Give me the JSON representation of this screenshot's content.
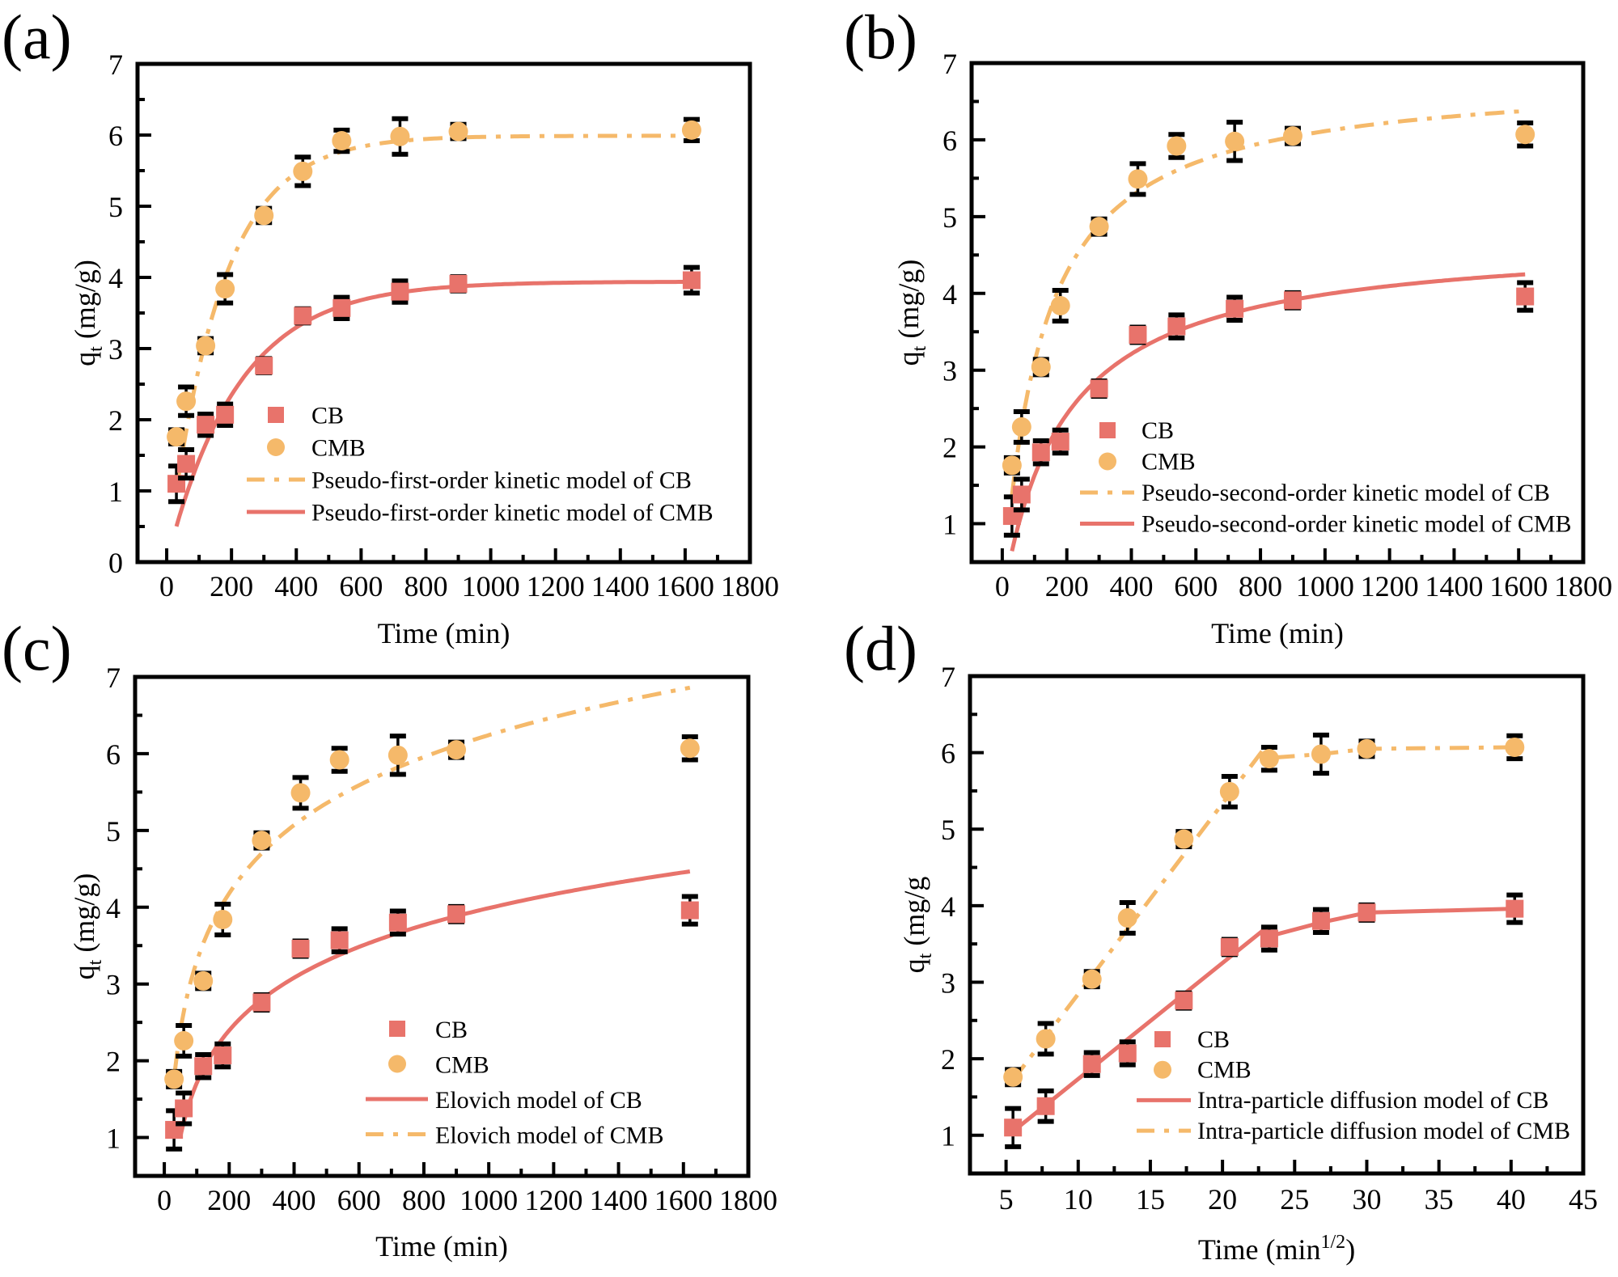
{
  "figure": {
    "colors": {
      "cb": "#E8736B",
      "cmb": "#F5B96A",
      "axis": "#000000"
    }
  },
  "chart_data": [
    {
      "id": "a",
      "type": "scatter",
      "panel_label": "(a)",
      "title": "",
      "xlabel": "Time (min)",
      "ylabel_main": "q",
      "ylabel_sub": "t",
      "ylabel_rest": " (mg/g)",
      "xlim": [
        -90,
        1800
      ],
      "ylim": [
        0,
        7
      ],
      "xticks": [
        0,
        200,
        400,
        600,
        800,
        1000,
        1200,
        1400,
        1600,
        1800
      ],
      "xtick_labels": [
        "0",
        "200",
        "400",
        "600",
        "800",
        "1000",
        "1200",
        "1400",
        "1600",
        "1800"
      ],
      "yticks": [
        0,
        1,
        2,
        3,
        4,
        5,
        6,
        7
      ],
      "ytick_labels": [
        "0",
        "1",
        "2",
        "3",
        "4",
        "5",
        "6",
        "7"
      ],
      "grid": false,
      "legend_position": "lower-center",
      "legend": [
        {
          "label": "CB",
          "kind": "square",
          "color_key": "cb"
        },
        {
          "label": "CMB",
          "kind": "circle",
          "color_key": "cmb"
        },
        {
          "label": "Pseudo-first-order kinetic model of CB",
          "kind": "dashdot",
          "color_key": "cmb"
        },
        {
          "label": "Pseudo-first-order kinetic model of CMB",
          "kind": "solid",
          "color_key": "cb"
        }
      ],
      "series": [
        {
          "name": "CB",
          "kind": "square",
          "color_key": "cb",
          "x": [
            30,
            60,
            120,
            180,
            300,
            420,
            540,
            720,
            900,
            1620
          ],
          "y": [
            1.1,
            1.38,
            1.93,
            2.07,
            2.76,
            3.46,
            3.57,
            3.8,
            3.91,
            3.96
          ],
          "err": [
            0.25,
            0.2,
            0.15,
            0.15,
            0.1,
            0.1,
            0.15,
            0.15,
            0.1,
            0.18
          ]
        },
        {
          "name": "CMB",
          "kind": "circle",
          "color_key": "cmb",
          "x": [
            30,
            60,
            120,
            180,
            300,
            420,
            540,
            720,
            900,
            1620
          ],
          "y": [
            1.76,
            2.26,
            3.04,
            3.84,
            4.87,
            5.49,
            5.92,
            5.98,
            6.05,
            6.07
          ],
          "err": [
            0.1,
            0.2,
            0.1,
            0.2,
            0.1,
            0.2,
            0.15,
            0.25,
            0.1,
            0.15
          ]
        }
      ],
      "models": [
        {
          "name": "Pseudo-first-order kinetic model of CB",
          "style": "dashdot",
          "color_key": "cmb",
          "form": "pfo",
          "qe": 5.99,
          "k": 0.0061,
          "x_range": [
            30,
            1620
          ]
        },
        {
          "name": "Pseudo-first-order kinetic model of CMB",
          "style": "solid",
          "color_key": "cb",
          "form": "pfo",
          "qe": 3.94,
          "k": 0.00453,
          "x_range": [
            30,
            1620
          ]
        }
      ]
    },
    {
      "id": "b",
      "type": "scatter",
      "panel_label": "(b)",
      "title": "",
      "xlabel": "Time (min)",
      "ylabel_main": "q",
      "ylabel_sub": "t",
      "ylabel_rest": " (mg/g)",
      "xlim": [
        -95,
        1800
      ],
      "ylim": [
        0.5,
        7
      ],
      "xticks": [
        0,
        200,
        400,
        600,
        800,
        1000,
        1200,
        1400,
        1600,
        1800
      ],
      "xtick_labels": [
        "0",
        "200",
        "400",
        "600",
        "800",
        "1000",
        "1200",
        "1400",
        "1600",
        "1800"
      ],
      "yticks": [
        1,
        2,
        3,
        4,
        5,
        6,
        7
      ],
      "ytick_labels": [
        "1",
        "2",
        "3",
        "4",
        "5",
        "6",
        "7"
      ],
      "grid": false,
      "legend_position": "lower-right",
      "legend": [
        {
          "label": "CB",
          "kind": "square",
          "color_key": "cb"
        },
        {
          "label": "CMB",
          "kind": "circle",
          "color_key": "cmb"
        },
        {
          "label": "Pseudo-second-order kinetic model of CB",
          "kind": "dashdot",
          "color_key": "cmb"
        },
        {
          "label": "Pseudo-second-order kinetic model of CMB",
          "kind": "solid",
          "color_key": "cb"
        }
      ],
      "series": [
        {
          "name": "CB",
          "kind": "square",
          "color_key": "cb",
          "x": [
            30,
            60,
            120,
            180,
            300,
            420,
            540,
            720,
            900,
            1620
          ],
          "y": [
            1.1,
            1.38,
            1.93,
            2.07,
            2.76,
            3.46,
            3.57,
            3.8,
            3.91,
            3.96
          ],
          "err": [
            0.25,
            0.2,
            0.15,
            0.15,
            0.1,
            0.1,
            0.15,
            0.15,
            0.1,
            0.18
          ]
        },
        {
          "name": "CMB",
          "kind": "circle",
          "color_key": "cmb",
          "x": [
            30,
            60,
            120,
            180,
            300,
            420,
            540,
            720,
            900,
            1620
          ],
          "y": [
            1.76,
            2.26,
            3.04,
            3.84,
            4.87,
            5.49,
            5.92,
            5.98,
            6.05,
            6.07
          ],
          "err": [
            0.1,
            0.2,
            0.1,
            0.2,
            0.1,
            0.2,
            0.15,
            0.25,
            0.1,
            0.15
          ]
        }
      ],
      "models": [
        {
          "name": "Pseudo-second-order kinetic model of CB",
          "style": "dashdot",
          "color_key": "cmb",
          "form": "pso",
          "qe": 6.85,
          "kqe": 0.0083,
          "x_range": [
            30,
            1620
          ]
        },
        {
          "name": "Pseudo-second-order kinetic model of CMB",
          "style": "solid",
          "color_key": "cb",
          "form": "pso",
          "qe": 4.75,
          "kqe": 0.00522,
          "x_range": [
            30,
            1620
          ]
        }
      ]
    },
    {
      "id": "c",
      "type": "scatter",
      "panel_label": "(c)",
      "title": "",
      "xlabel": "Time (min)",
      "ylabel_main": "q",
      "ylabel_sub": "t",
      "ylabel_rest": " (mg/g)",
      "xlim": [
        -90,
        1800
      ],
      "ylim": [
        0.5,
        7
      ],
      "xticks": [
        0,
        200,
        400,
        600,
        800,
        1000,
        1200,
        1400,
        1600,
        1800
      ],
      "xtick_labels": [
        "0",
        "200",
        "400",
        "600",
        "800",
        "1000",
        "1200",
        "1400",
        "1600",
        "1800"
      ],
      "yticks": [
        1,
        2,
        3,
        4,
        5,
        6,
        7
      ],
      "ytick_labels": [
        "1",
        "2",
        "3",
        "4",
        "5",
        "6",
        "7"
      ],
      "grid": false,
      "legend_position": "lower-center",
      "legend": [
        {
          "label": "CB",
          "kind": "square",
          "color_key": "cb"
        },
        {
          "label": "CMB",
          "kind": "circle",
          "color_key": "cmb"
        },
        {
          "label": "Elovich model of CB",
          "kind": "solid",
          "color_key": "cb"
        },
        {
          "label": "Elovich model of CMB",
          "kind": "dashdot",
          "color_key": "cmb"
        }
      ],
      "series": [
        {
          "name": "CB",
          "kind": "square",
          "color_key": "cb",
          "x": [
            30,
            60,
            120,
            180,
            300,
            420,
            540,
            720,
            900,
            1620
          ],
          "y": [
            1.1,
            1.38,
            1.93,
            2.07,
            2.76,
            3.46,
            3.57,
            3.8,
            3.91,
            3.96
          ],
          "err": [
            0.25,
            0.2,
            0.15,
            0.15,
            0.1,
            0.1,
            0.15,
            0.15,
            0.1,
            0.18
          ]
        },
        {
          "name": "CMB",
          "kind": "circle",
          "color_key": "cmb",
          "x": [
            30,
            60,
            120,
            180,
            300,
            420,
            540,
            720,
            900,
            1620
          ],
          "y": [
            1.76,
            2.26,
            3.04,
            3.84,
            4.87,
            5.49,
            5.92,
            5.98,
            6.05,
            6.07
          ],
          "err": [
            0.1,
            0.2,
            0.1,
            0.2,
            0.1,
            0.2,
            0.15,
            0.25,
            0.1,
            0.15
          ]
        }
      ],
      "models": [
        {
          "name": "Elovich model of CB",
          "style": "solid",
          "color_key": "cb",
          "form": "elovich",
          "a": -2.85,
          "b": 0.99,
          "x_range": [
            50,
            1620
          ]
        },
        {
          "name": "Elovich model of CMB",
          "style": "dashdot",
          "color_key": "cmb",
          "form": "elovich",
          "a": -2.6,
          "b": 1.28,
          "x_range": [
            33,
            1620
          ]
        }
      ]
    },
    {
      "id": "d",
      "type": "scatter",
      "panel_label": "(d)",
      "title": "",
      "xlabel": "Time (min",
      "xlabel_sup": "1/2",
      "xlabel_end": ")",
      "ylabel_main": "q",
      "ylabel_sub": "t",
      "ylabel_rest": " (mg/g",
      "xlim": [
        2.5,
        45
      ],
      "ylim": [
        0.5,
        7
      ],
      "xticks": [
        5,
        10,
        15,
        20,
        25,
        30,
        35,
        40,
        45
      ],
      "xtick_labels": [
        "5",
        "10",
        "15",
        "20",
        "25",
        "30",
        "35",
        "40",
        "45"
      ],
      "yticks": [
        1,
        2,
        3,
        4,
        5,
        6,
        7
      ],
      "ytick_labels": [
        "1",
        "2",
        "3",
        "4",
        "5",
        "6",
        "7"
      ],
      "grid": false,
      "legend_position": "lower-right",
      "legend": [
        {
          "label": "CB",
          "kind": "square",
          "color_key": "cb"
        },
        {
          "label": "CMB",
          "kind": "circle",
          "color_key": "cmb"
        },
        {
          "label": "Intra-particle diffusion model of CB",
          "kind": "solid",
          "color_key": "cb"
        },
        {
          "label": "Intra-particle diffusion  model of CMB",
          "kind": "dashdot",
          "color_key": "cmb"
        }
      ],
      "series": [
        {
          "name": "CB",
          "kind": "square",
          "color_key": "cb",
          "x": [
            5.48,
            7.75,
            10.95,
            13.42,
            17.32,
            20.49,
            23.24,
            26.83,
            30.0,
            40.25
          ],
          "y": [
            1.1,
            1.38,
            1.93,
            2.07,
            2.76,
            3.46,
            3.57,
            3.8,
            3.91,
            3.96
          ],
          "err": [
            0.25,
            0.2,
            0.15,
            0.15,
            0.1,
            0.1,
            0.15,
            0.15,
            0.1,
            0.18
          ]
        },
        {
          "name": "CMB",
          "kind": "circle",
          "color_key": "cmb",
          "x": [
            5.48,
            7.75,
            10.95,
            13.42,
            17.32,
            20.49,
            23.24,
            26.83,
            30.0,
            40.25
          ],
          "y": [
            1.76,
            2.26,
            3.04,
            3.84,
            4.87,
            5.49,
            5.92,
            5.98,
            6.05,
            6.07
          ],
          "err": [
            0.1,
            0.2,
            0.1,
            0.2,
            0.1,
            0.2,
            0.15,
            0.25,
            0.1,
            0.15
          ]
        }
      ],
      "models": [
        {
          "name": "Intra-particle diffusion model of CB",
          "style": "solid",
          "color_key": "cb",
          "form": "polyline",
          "x": [
            5.48,
            23.1,
            23.24,
            26.83,
            30.0,
            40.25
          ],
          "y": [
            1.05,
            3.72,
            3.6,
            3.78,
            3.91,
            3.96
          ]
        },
        {
          "name": "Intra-particle diffusion  model of CMB",
          "style": "dashdot",
          "color_key": "cmb",
          "form": "polyline",
          "x": [
            5.48,
            23.0,
            23.24,
            26.83,
            30.0,
            40.25
          ],
          "y": [
            1.72,
            6.08,
            5.93,
            5.98,
            6.05,
            6.07
          ]
        }
      ]
    }
  ]
}
